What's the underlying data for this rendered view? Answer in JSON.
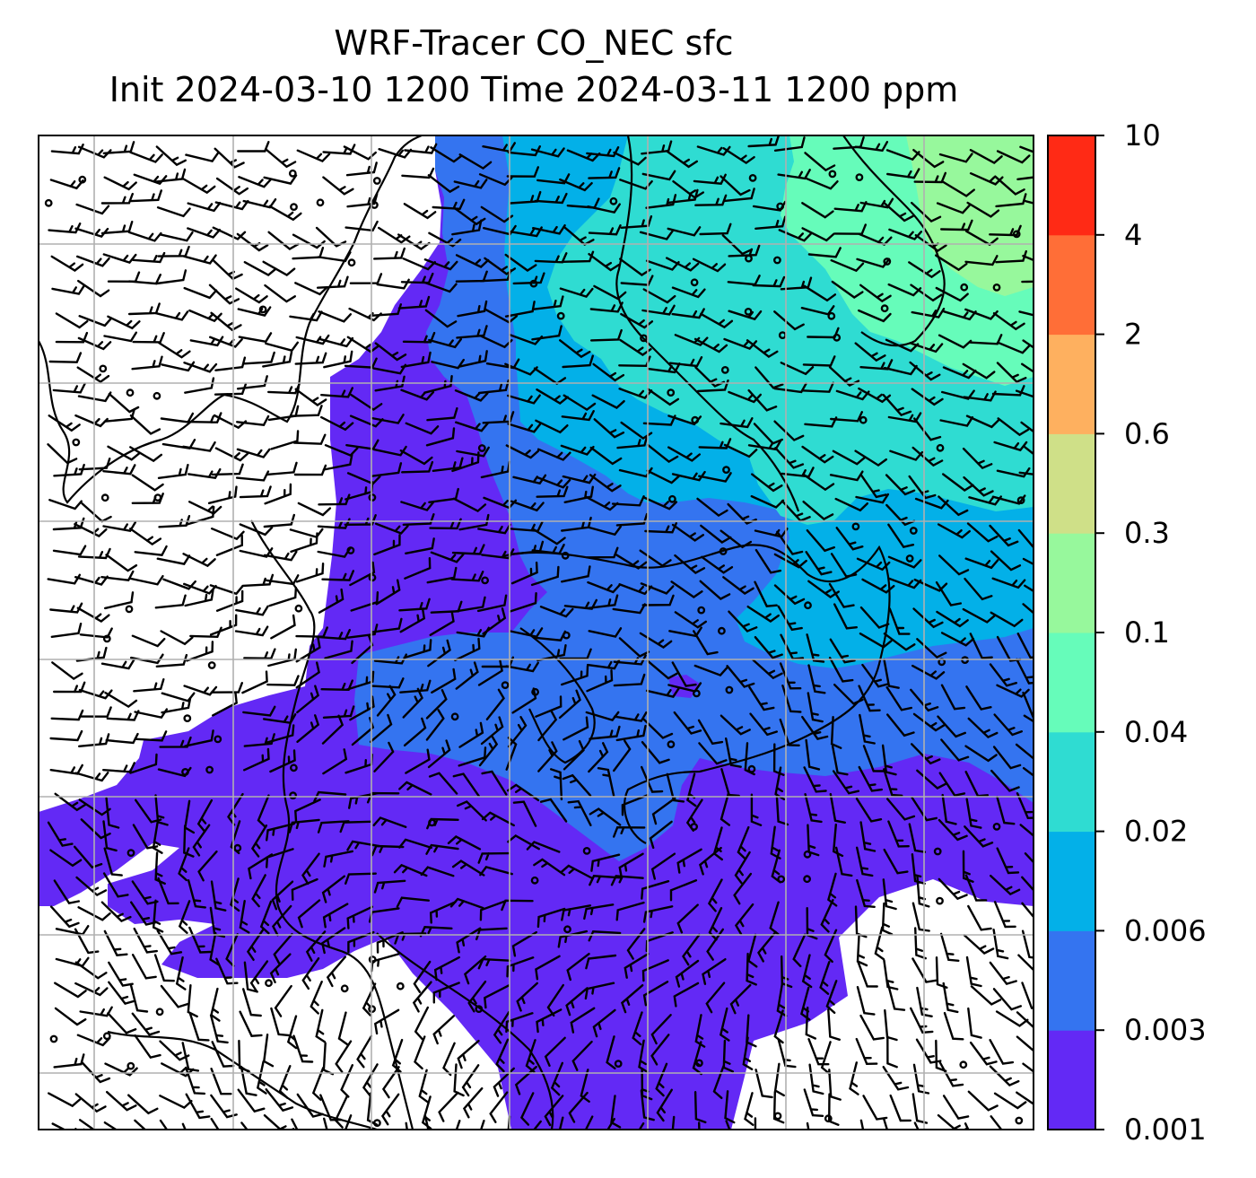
{
  "title": {
    "line1": "WRF-Tracer CO_NEC sfc",
    "line2": "Init 2024-03-10 1200 Time 2024-03-11 1200 ppm"
  },
  "colorbar": {
    "levels": [
      "0.001",
      "0.003",
      "0.006",
      "0.02",
      "0.04",
      "0.1",
      "0.3",
      "0.6",
      "2",
      "4",
      "10"
    ],
    "colors": [
      "#6329f5",
      "#3474f0",
      "#03b0e8",
      "#2fdcd2",
      "#66fcba",
      "#97f89c",
      "#cfe088",
      "#feb05f",
      "#ff6e37",
      "#ff2a15"
    ]
  },
  "colors": {
    "outside": "#ffffff",
    "grid": "#b0b0b0",
    "barb": "#000000",
    "coast": "#000000"
  }
}
